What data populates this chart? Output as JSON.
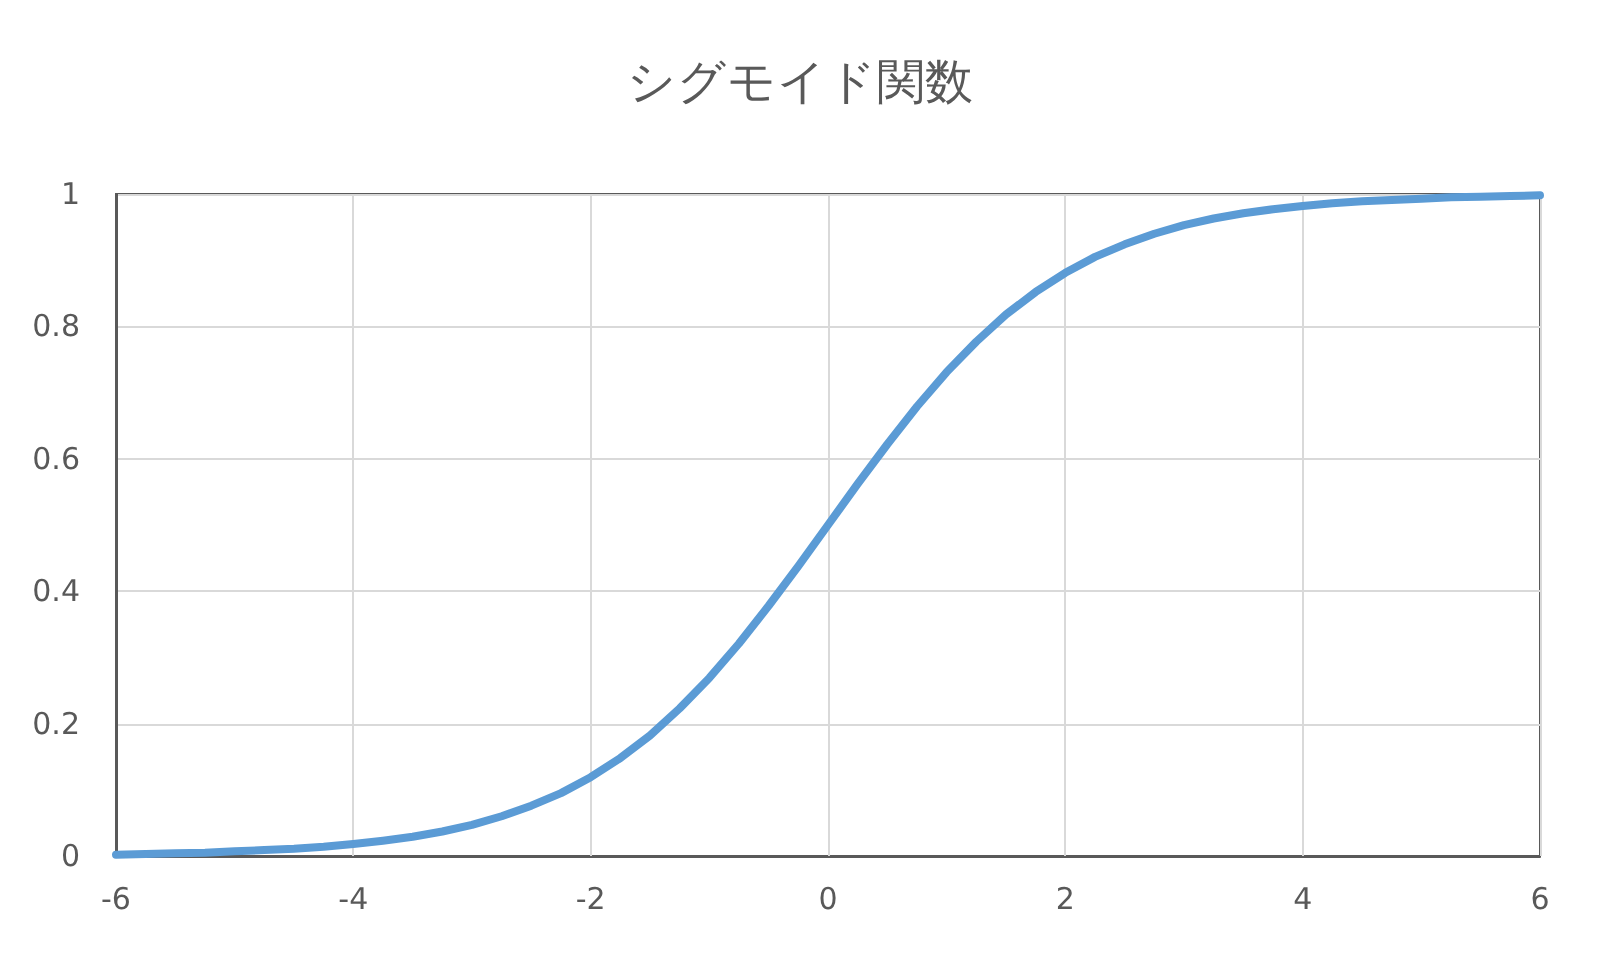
{
  "chart_data": {
    "type": "line",
    "title": "シグモイド関数",
    "x": [
      -6,
      -5.75,
      -5.5,
      -5.25,
      -5,
      -4.75,
      -4.5,
      -4.25,
      -4,
      -3.75,
      -3.5,
      -3.25,
      -3,
      -2.75,
      -2.5,
      -2.25,
      -2,
      -1.75,
      -1.5,
      -1.25,
      -1,
      -0.75,
      -0.5,
      -0.25,
      0,
      0.25,
      0.5,
      0.75,
      1,
      1.25,
      1.5,
      1.75,
      2,
      2.25,
      2.5,
      2.75,
      3,
      3.25,
      3.5,
      3.75,
      4,
      4.25,
      4.5,
      4.75,
      5,
      5.25,
      5.5,
      5.75,
      6
    ],
    "values": [
      0.002,
      0.003,
      0.004,
      0.005,
      0.007,
      0.009,
      0.011,
      0.014,
      0.018,
      0.023,
      0.029,
      0.037,
      0.047,
      0.06,
      0.076,
      0.095,
      0.119,
      0.148,
      0.182,
      0.223,
      0.269,
      0.321,
      0.378,
      0.438,
      0.5,
      0.562,
      0.622,
      0.679,
      0.731,
      0.777,
      0.818,
      0.852,
      0.881,
      0.905,
      0.924,
      0.94,
      0.953,
      0.963,
      0.971,
      0.977,
      0.982,
      0.986,
      0.989,
      0.991,
      0.993,
      0.995,
      0.996,
      0.997,
      0.998
    ],
    "color": "#5b9bd5",
    "xlim": [
      -6,
      6
    ],
    "xticks": [
      -6,
      -4,
      -2,
      0,
      2,
      4,
      6
    ],
    "ylim": [
      0,
      1
    ],
    "yticks": [
      0,
      0.2,
      0.4,
      0.6,
      0.8,
      1
    ],
    "grid": true,
    "marker": "none"
  }
}
